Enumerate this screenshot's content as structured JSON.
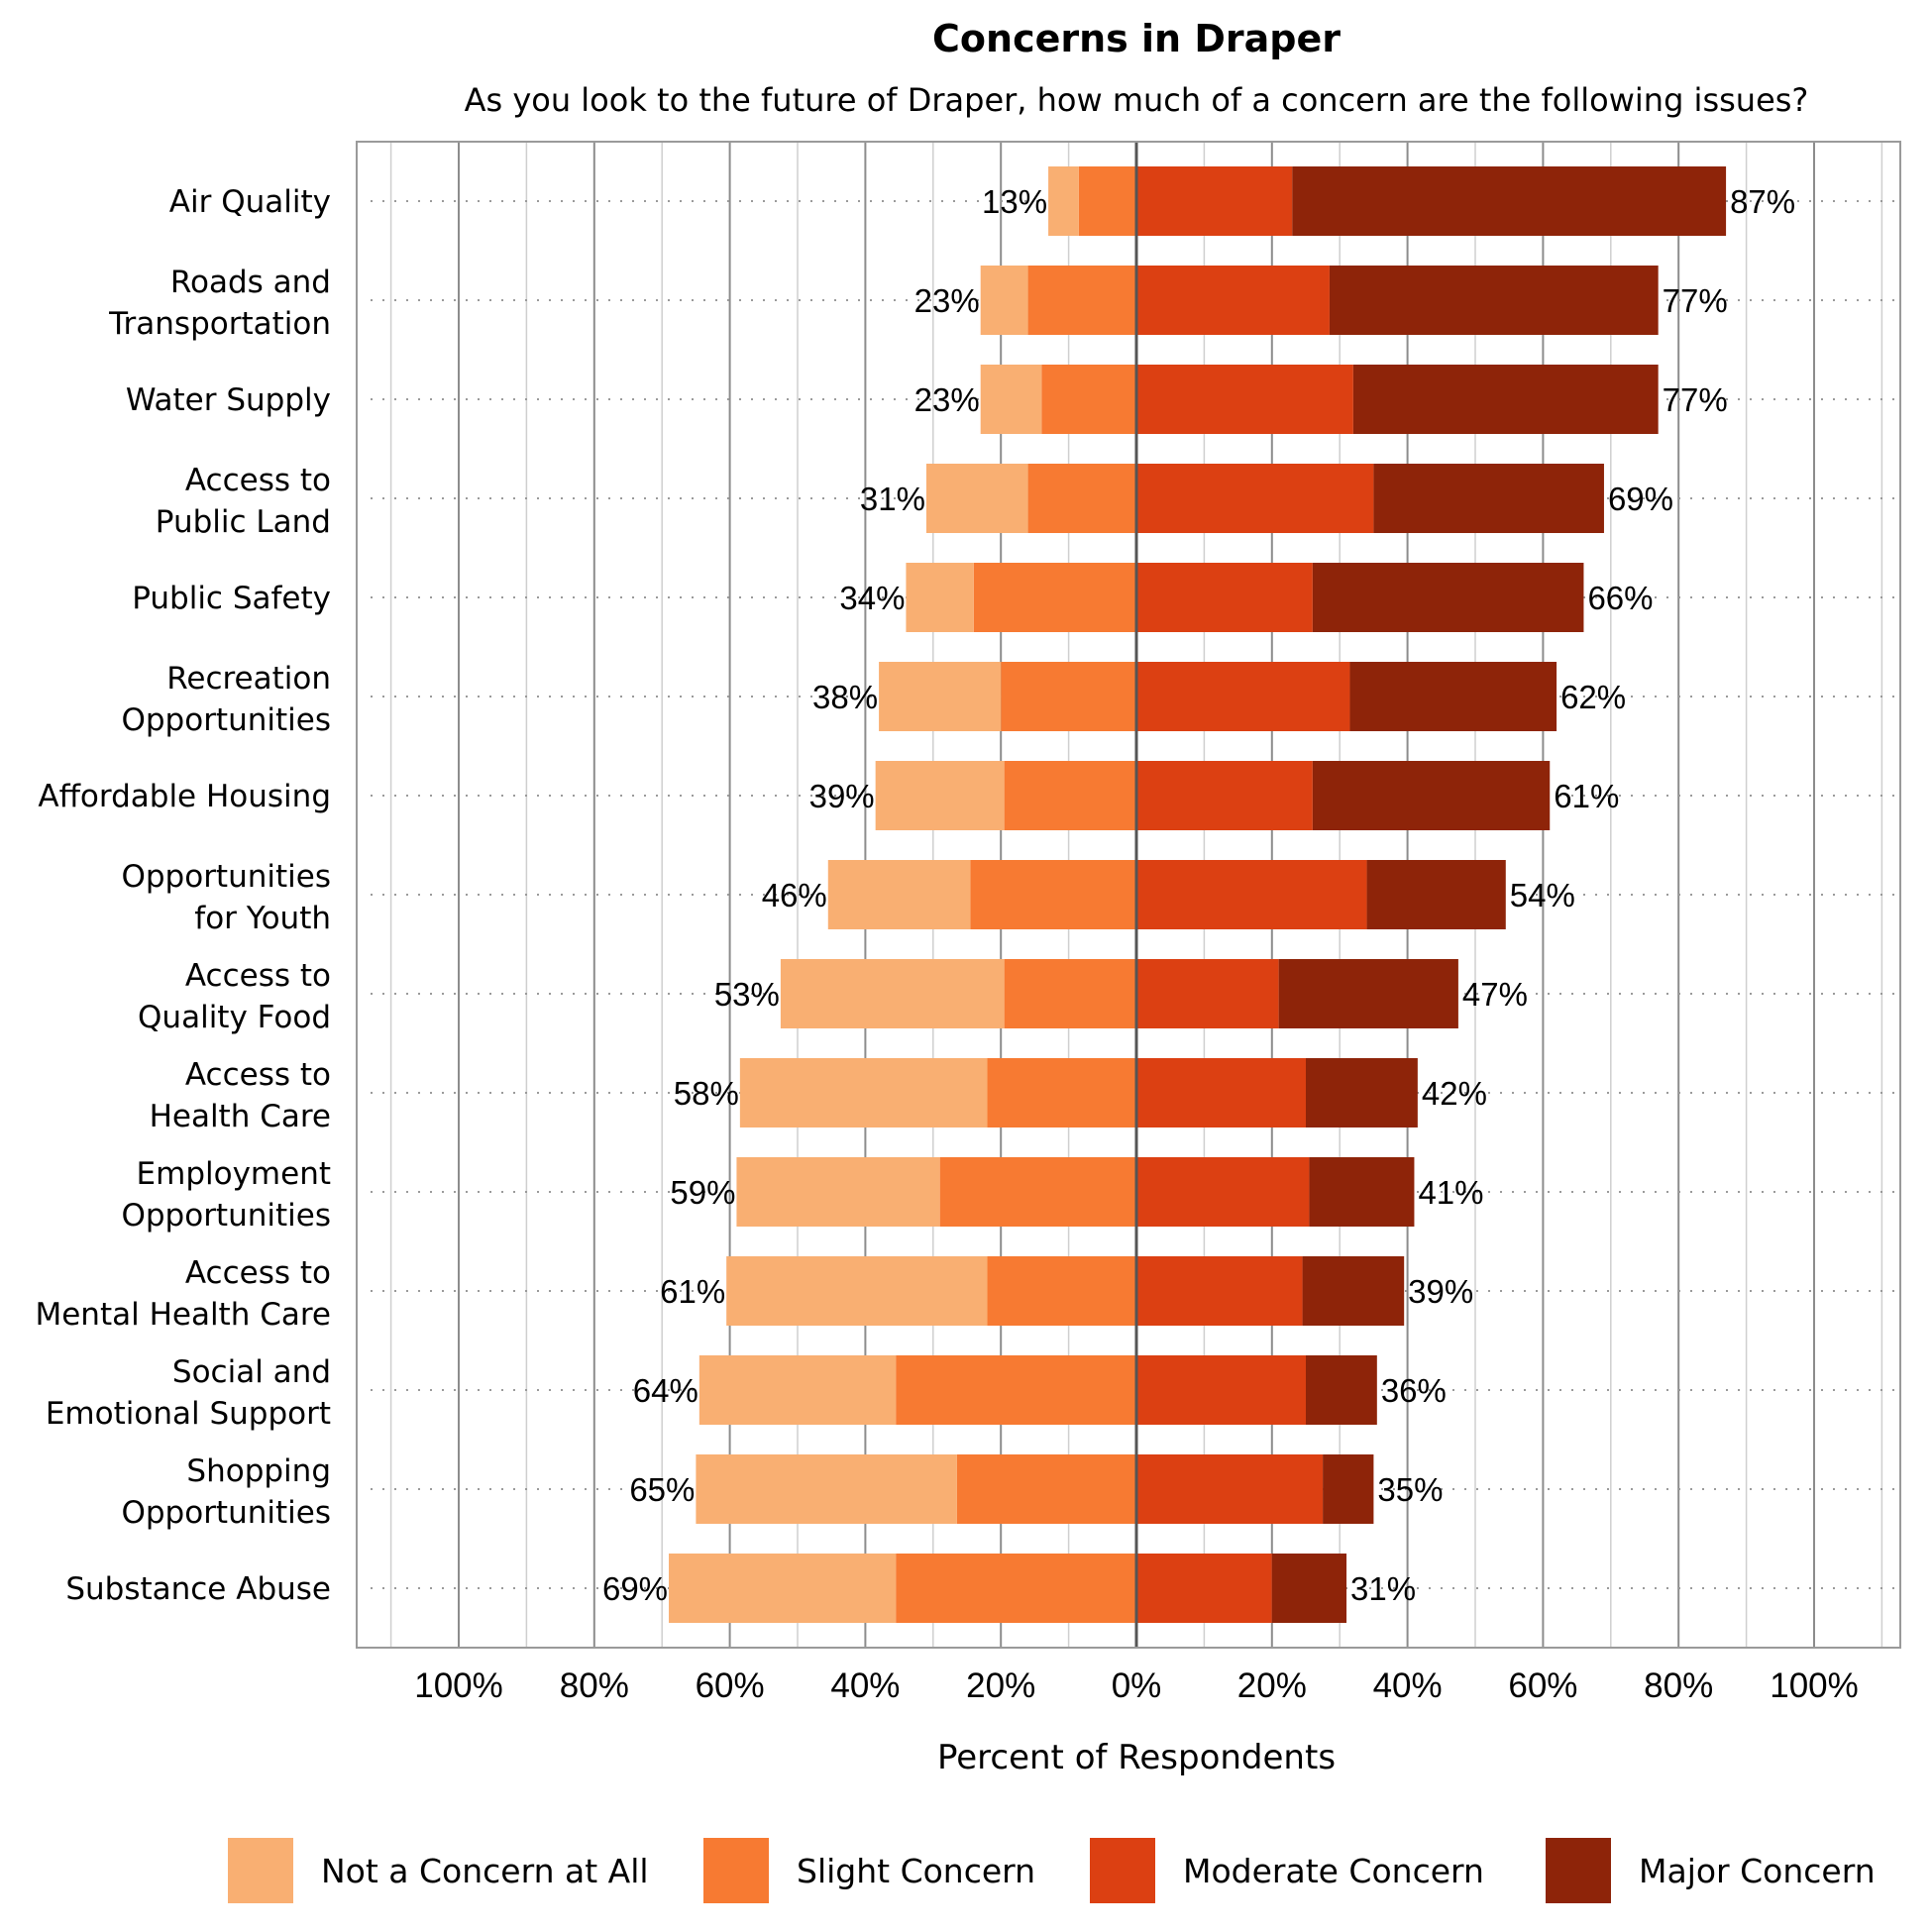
{
  "chart_data": {
    "type": "bar",
    "orientation": "horizontal",
    "layout": "diverging-stacked",
    "title": "Concerns in Draper",
    "subtitle": "As you look to the future of Draper, how much of a concern are the following issues?",
    "xlabel": "Percent of Respondents",
    "xlim": [
      -100,
      100
    ],
    "xticks": [
      -100,
      -80,
      -60,
      -40,
      -20,
      0,
      20,
      40,
      60,
      80,
      100
    ],
    "xtick_labels": [
      "100%",
      "80%",
      "60%",
      "40%",
      "20%",
      "0%",
      "20%",
      "40%",
      "60%",
      "80%",
      "100%"
    ],
    "grid": true,
    "legend_position": "bottom",
    "categories": [
      [
        "Air Quality"
      ],
      [
        "Roads and",
        "Transportation"
      ],
      [
        "Water Supply"
      ],
      [
        "Access to",
        "Public Land"
      ],
      [
        "Public Safety"
      ],
      [
        "Recreation",
        "Opportunities"
      ],
      [
        "Affordable Housing"
      ],
      [
        "Opportunities",
        "for Youth"
      ],
      [
        "Access to",
        "Quality Food"
      ],
      [
        "Access to",
        "Health Care"
      ],
      [
        "Employment",
        "Opportunities"
      ],
      [
        "Access to",
        "Mental Health Care"
      ],
      [
        "Social and",
        "Emotional Support"
      ],
      [
        "Shopping",
        "Opportunities"
      ],
      [
        "Substance Abuse"
      ]
    ],
    "series": [
      {
        "name": "Not a Concern at All",
        "color": "#F9AF72",
        "side": "negative",
        "values": [
          4.5,
          7,
          9,
          15,
          10,
          18,
          19,
          21,
          33,
          36.5,
          30,
          38.5,
          29,
          38.5,
          33.5
        ]
      },
      {
        "name": "Slight Concern",
        "color": "#F77A32",
        "side": "negative",
        "values": [
          8.5,
          16,
          14,
          16,
          24,
          20,
          19.5,
          24.5,
          19.5,
          22,
          29,
          22,
          35.5,
          26.5,
          35.5
        ]
      },
      {
        "name": "Moderate Concern",
        "color": "#DC4012",
        "side": "positive",
        "values": [
          23,
          28.5,
          32,
          35,
          26,
          31.5,
          26,
          34,
          21,
          25,
          25.5,
          24.5,
          25,
          27.5,
          20
        ]
      },
      {
        "name": "Major Concern",
        "color": "#8E2409",
        "side": "positive",
        "values": [
          64,
          48.5,
          45,
          34,
          40,
          30.5,
          35,
          20.5,
          26.5,
          16.5,
          15.5,
          15,
          10.5,
          7.5,
          11
        ]
      }
    ],
    "negative_totals": [
      "13%",
      "23%",
      "23%",
      "31%",
      "34%",
      "38%",
      "39%",
      "46%",
      "53%",
      "58%",
      "59%",
      "61%",
      "64%",
      "65%",
      "69%"
    ],
    "positive_totals": [
      "87%",
      "77%",
      "77%",
      "69%",
      "66%",
      "62%",
      "61%",
      "54%",
      "47%",
      "42%",
      "41%",
      "39%",
      "36%",
      "35%",
      "31%"
    ]
  }
}
